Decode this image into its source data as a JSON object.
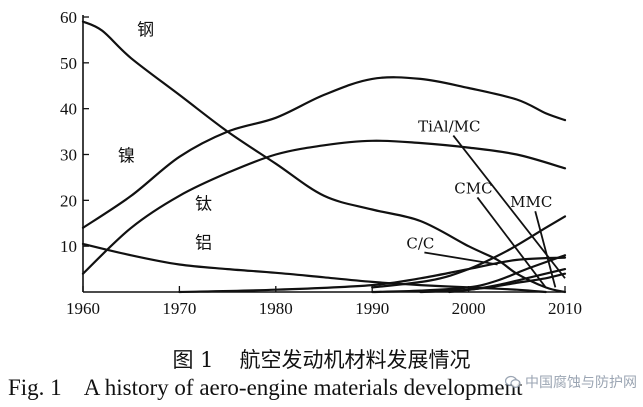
{
  "chart_data": {
    "type": "line",
    "title": "",
    "xlabel": "",
    "ylabel": "",
    "xlim": [
      1960,
      2010
    ],
    "ylim": [
      0,
      60
    ],
    "x_ticks": [
      1960,
      1970,
      1980,
      1990,
      2000,
      2010
    ],
    "y_ticks": [
      10,
      20,
      30,
      40,
      50,
      60
    ],
    "y_tick_labels": [
      "10",
      "20",
      "30",
      "40",
      "50",
      "60"
    ],
    "grid": false,
    "series": [
      {
        "name": "钢",
        "x": [
          1960,
          1962,
          1965,
          1970,
          1975,
          1980,
          1985,
          1990,
          1995,
          2000,
          2003,
          2005,
          2008,
          2010
        ],
        "y": [
          59,
          57,
          51,
          43,
          35,
          28,
          21,
          18,
          15.5,
          10,
          7,
          4,
          1,
          0
        ]
      },
      {
        "name": "镍",
        "x": [
          1960,
          1965,
          1970,
          1975,
          1980,
          1985,
          1990,
          1995,
          2000,
          2005,
          2008,
          2010
        ],
        "y": [
          14,
          21,
          29.5,
          35,
          38,
          43,
          46.5,
          46.5,
          44.5,
          42,
          39,
          37.5
        ]
      },
      {
        "name": "钛",
        "x": [
          1960,
          1965,
          1970,
          1975,
          1980,
          1985,
          1990,
          1995,
          2000,
          2005,
          2010
        ],
        "y": [
          4,
          14,
          21,
          26,
          30,
          32,
          33,
          32.5,
          31.5,
          30,
          27
        ]
      },
      {
        "name": "铝",
        "x": [
          1960,
          1965,
          1970,
          1975,
          1980,
          1985,
          1990,
          1995,
          2000,
          2005,
          2008
        ],
        "y": [
          10.5,
          8,
          6,
          5,
          4.2,
          3.2,
          2.2,
          1.5,
          1,
          0.5,
          0
        ]
      },
      {
        "name": "C/C",
        "x": [
          1970,
          1980,
          1990,
          1995,
          2000,
          2005,
          2010
        ],
        "y": [
          0,
          0.5,
          1.5,
          3,
          5,
          7,
          7.5
        ]
      },
      {
        "name": "TiAl/MC",
        "x": [
          1990,
          1995,
          2000,
          2003,
          2006,
          2010
        ],
        "y": [
          0,
          0.3,
          1,
          2.5,
          5,
          8
        ]
      },
      {
        "name": "CMC",
        "x": [
          1995,
          2000,
          2003,
          2006,
          2010
        ],
        "y": [
          0,
          0.5,
          1.5,
          3,
          5
        ]
      },
      {
        "name": "MMC",
        "x": [
          1998,
          2002,
          2005,
          2008,
          2010
        ],
        "y": [
          0,
          1,
          2,
          3,
          4
        ]
      },
      {
        "name": "",
        "x": [
          1990,
          1996,
          2000,
          2004,
          2008,
          2010
        ],
        "y": [
          1,
          2.5,
          5,
          9,
          14,
          16.5
        ]
      }
    ],
    "annotations": [
      {
        "text": "钢",
        "x": 1966.5,
        "y": 56
      },
      {
        "text": "镍",
        "x": 1964.5,
        "y": 28.5
      },
      {
        "text": "钛",
        "x": 1972.5,
        "y": 18
      },
      {
        "text": "铝",
        "x": 1972.5,
        "y": 9.5
      },
      {
        "text": "TiAl/MC",
        "x": 1998,
        "y": 35,
        "leader_to": [
          2010,
          3
        ]
      },
      {
        "text": "CMC",
        "x": 2000.5,
        "y": 21.5,
        "leader_to": [
          2008,
          1
        ]
      },
      {
        "text": "MMC",
        "x": 2006.5,
        "y": 18.5,
        "leader_to": [
          2009,
          1
        ]
      },
      {
        "text": "C/C",
        "x": 1995,
        "y": 9.5,
        "leader_to": [
          2003,
          6
        ]
      }
    ]
  },
  "caption": {
    "cn_fig": "图 1",
    "cn_text": "航空发动机材料发展情况",
    "en_fig": "Fig. 1",
    "en_text": "A history of aero-engine materials development"
  },
  "watermark": {
    "text": "中国腐蚀与防护网",
    "icon": "wechat-icon"
  }
}
